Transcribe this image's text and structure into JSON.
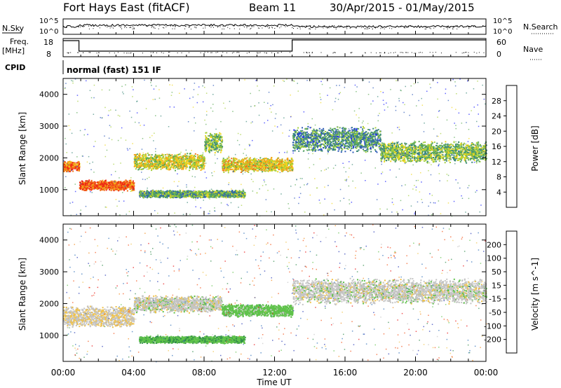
{
  "header": {
    "station": "Fort Hays East (fitACF)",
    "beam": "Beam 11",
    "dates": "30/Apr/2015 - 01/May/2015"
  },
  "status_panels": {
    "nsky_label": "N.Sky",
    "nsearch_label": "N.Search",
    "nsky_ticks": [
      "10^5",
      "10^0"
    ],
    "freq_label": "Freq.",
    "freq_unit": "[MHz]",
    "freq_ticks": [
      "18",
      "8"
    ],
    "nave_label": "Nave",
    "nave_ticks": [
      "60",
      "0"
    ],
    "cpid_label": "CPID",
    "cpid_value": "normal (fast) 151 IF"
  },
  "axes": {
    "x_ticks": [
      "00:00",
      "04:00",
      "08:00",
      "12:00",
      "16:00",
      "20:00",
      "00:00"
    ],
    "x_label": "Time UT",
    "y_ticks": [
      "1000",
      "2000",
      "3000",
      "4000"
    ],
    "y_label": "Slant Range [km]"
  },
  "colorbars": {
    "power": {
      "label": "Power [dB]",
      "ticks": [
        "4",
        "8",
        "12",
        "16",
        "20",
        "24",
        "28"
      ],
      "colors": [
        "#1e23ff",
        "#2f5bb8",
        "#3d8a7a",
        "#5cab56",
        "#a3cf3b",
        "#f0d61c",
        "#f2a51b",
        "#f26f17",
        "#ef2a14"
      ]
    },
    "velocity": {
      "label": "Velocity [m s^-1]",
      "ticks": [
        "200",
        "100",
        "50",
        "15",
        "-15",
        "-50",
        "-100",
        "-200"
      ],
      "colors": [
        "#2537b5",
        "#2f6fb8",
        "#2f8a4a",
        "#5fc24a",
        "#c4c4c4",
        "#f0c24a",
        "#f28b1e",
        "#f2541a",
        "#e81212"
      ]
    }
  },
  "chart_data": [
    {
      "type": "heatmap",
      "title": "Power",
      "xlabel": "Time UT",
      "ylabel": "Slant Range [km]",
      "x_range_hours": [
        0,
        24
      ],
      "ylim": [
        180,
        4500
      ],
      "colorbar": {
        "label": "Power [dB]",
        "range": [
          0,
          32
        ]
      },
      "echo_bands": [
        {
          "start_hour": 0.0,
          "end_hour": 0.9,
          "range_center_km": 1750,
          "range_width_km": 250,
          "power_db": 26
        },
        {
          "start_hour": 0.9,
          "end_hour": 4.0,
          "range_center_km": 1150,
          "range_width_km": 250,
          "power_db": 28
        },
        {
          "start_hour": 4.0,
          "end_hour": 8.0,
          "range_center_km": 1900,
          "range_width_km": 400,
          "power_db": 18
        },
        {
          "start_hour": 8.0,
          "end_hour": 9.0,
          "range_center_km": 2500,
          "range_width_km": 500,
          "power_db": 14
        },
        {
          "start_hour": 9.0,
          "end_hour": 13.0,
          "range_center_km": 1800,
          "range_width_km": 350,
          "power_db": 20
        },
        {
          "start_hour": 4.3,
          "end_hour": 10.3,
          "range_center_km": 880,
          "range_width_km": 180,
          "power_db": 12
        },
        {
          "start_hour": 13.0,
          "end_hour": 18.0,
          "range_center_km": 2600,
          "range_width_km": 600,
          "power_db": 10
        },
        {
          "start_hour": 18.0,
          "end_hour": 24.0,
          "range_center_km": 2200,
          "range_width_km": 500,
          "power_db": 14
        }
      ]
    },
    {
      "type": "heatmap",
      "title": "Velocity",
      "xlabel": "Time UT",
      "ylabel": "Slant Range [km]",
      "x_range_hours": [
        0,
        24
      ],
      "ylim": [
        180,
        4500
      ],
      "colorbar": {
        "label": "Velocity [m s^-1]",
        "range": [
          -200,
          200
        ]
      },
      "echo_bands": [
        {
          "start_hour": 0.0,
          "end_hour": 4.0,
          "range_center_km": 1600,
          "range_width_km": 500,
          "velocity_ms": -10
        },
        {
          "start_hour": 4.0,
          "end_hour": 9.0,
          "range_center_km": 2000,
          "range_width_km": 400,
          "velocity_ms": 0
        },
        {
          "start_hour": 9.0,
          "end_hour": 13.0,
          "range_center_km": 1800,
          "range_width_km": 300,
          "velocity_ms": 30
        },
        {
          "start_hour": 4.3,
          "end_hour": 10.3,
          "range_center_km": 880,
          "range_width_km": 180,
          "velocity_ms": 40
        },
        {
          "start_hour": 13.0,
          "end_hour": 24.0,
          "range_center_km": 2400,
          "range_width_km": 600,
          "velocity_ms": 0
        }
      ]
    }
  ]
}
